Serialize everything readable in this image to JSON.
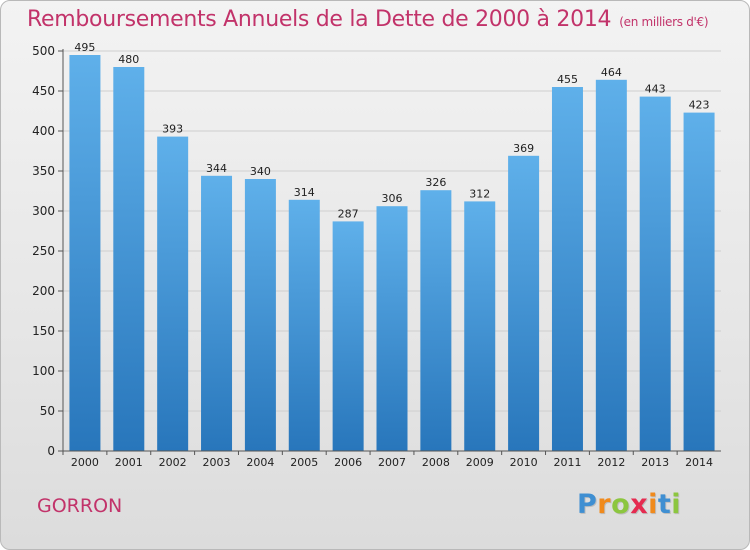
{
  "chart_data": {
    "type": "bar",
    "title": "Remboursements Annuels de la Dette de 2000 à 2014",
    "unit": "(en milliers d'€)",
    "categories": [
      "2000",
      "2001",
      "2002",
      "2003",
      "2004",
      "2005",
      "2006",
      "2007",
      "2008",
      "2009",
      "2010",
      "2011",
      "2012",
      "2013",
      "2014"
    ],
    "values": [
      495,
      480,
      393,
      344,
      340,
      314,
      287,
      306,
      326,
      312,
      369,
      455,
      464,
      443,
      423
    ],
    "xlabel": "",
    "ylabel": "",
    "ylim": [
      0,
      500
    ],
    "yticks": [
      0,
      50,
      100,
      150,
      200,
      250,
      300,
      350,
      400,
      450,
      500
    ],
    "grid": true,
    "colors": {
      "bar_top": "#5fb0ea",
      "bar_bottom": "#2876bb",
      "title": "#c2336a"
    }
  },
  "footer": {
    "commune": "GORRON",
    "logo_letters": [
      "P",
      "r",
      "o",
      "x",
      "i",
      "t",
      "i"
    ],
    "logo_colors": [
      "#3f8fd2",
      "#f08a1c",
      "#8cc63f",
      "#e52b50",
      "#f08a1c",
      "#3f8fd2",
      "#8cc63f"
    ]
  }
}
